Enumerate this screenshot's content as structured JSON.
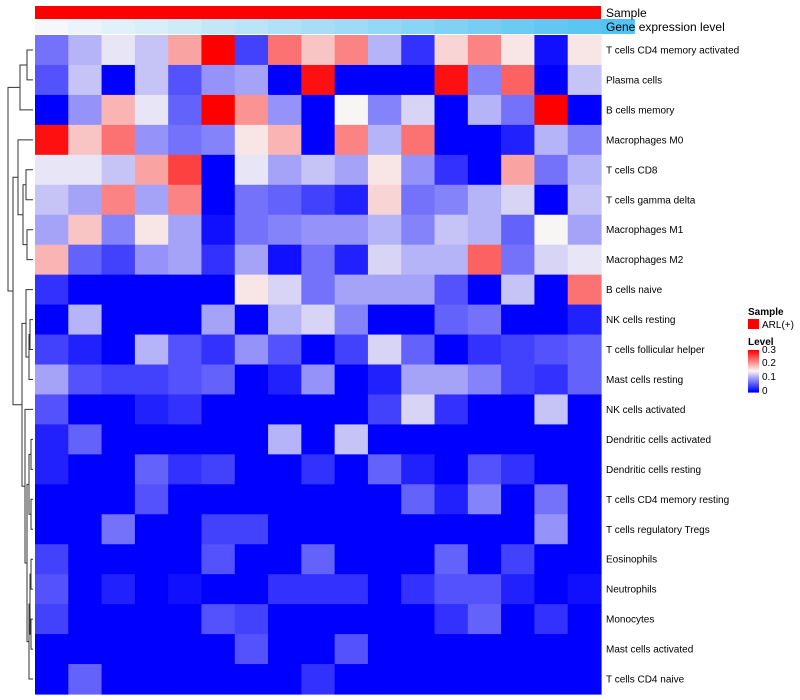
{
  "chart_data": {
    "type": "heatmap",
    "annotation_labels": [
      "Sample",
      "Gene expression level"
    ],
    "rows": [
      "T cells CD4 memory activated",
      "Plasma cells",
      "B cells memory",
      "Macrophages M0",
      "T cells CD8",
      "T cells gamma delta",
      "Macrophages M1",
      "Macrophages M2",
      "B cells naive",
      "NK cells resting",
      "T cells follicular helper",
      "Mast cells resting",
      "NK cells activated",
      "Dendritic cells activated",
      "Dendritic cells resting",
      "T cells CD4 memory resting",
      "T cells regulatory  Tregs",
      "Eosinophils",
      "Neutrophils",
      "Monocytes",
      "Mast cells activated",
      "T cells CD4 naive"
    ],
    "expression_level": [
      0.0,
      0.06,
      0.12,
      0.18,
      0.24,
      0.3,
      0.36,
      0.42,
      0.48,
      0.54,
      0.6,
      0.66,
      0.72,
      0.78,
      0.84,
      0.9,
      0.95,
      1.0
    ],
    "values": [
      [
        0.07,
        0.11,
        0.14,
        0.12,
        0.2,
        0.3,
        0.04,
        0.23,
        0.18,
        0.22,
        0.11,
        0.03,
        0.17,
        0.22,
        0.16,
        0.01,
        0.16
      ],
      [
        0.05,
        0.12,
        0.0,
        0.12,
        0.05,
        0.09,
        0.1,
        0.0,
        0.29,
        0.0,
        0.0,
        0.0,
        0.29,
        0.08,
        0.24,
        0.0,
        0.12
      ],
      [
        0.0,
        0.09,
        0.19,
        0.14,
        0.06,
        0.3,
        0.21,
        0.09,
        0.0,
        0.15,
        0.08,
        0.13,
        0.0,
        0.11,
        0.07,
        0.3,
        0.0
      ],
      [
        0.29,
        0.18,
        0.23,
        0.09,
        0.07,
        0.08,
        0.16,
        0.19,
        0.0,
        0.22,
        0.11,
        0.23,
        0.0,
        0.0,
        0.02,
        0.11,
        0.08
      ],
      [
        0.14,
        0.14,
        0.12,
        0.2,
        0.26,
        0.0,
        0.14,
        0.1,
        0.12,
        0.1,
        0.16,
        0.09,
        0.03,
        0.0,
        0.2,
        0.07,
        0.11
      ],
      [
        0.12,
        0.1,
        0.22,
        0.1,
        0.22,
        0.0,
        0.07,
        0.06,
        0.04,
        0.02,
        0.17,
        0.07,
        0.08,
        0.11,
        0.13,
        0.0,
        0.12
      ],
      [
        0.1,
        0.18,
        0.08,
        0.16,
        0.1,
        0.01,
        0.07,
        0.08,
        0.09,
        0.09,
        0.11,
        0.08,
        0.12,
        0.11,
        0.06,
        0.15,
        0.1
      ],
      [
        0.19,
        0.06,
        0.04,
        0.09,
        0.1,
        0.03,
        0.1,
        0.01,
        0.07,
        0.02,
        0.13,
        0.11,
        0.11,
        0.24,
        0.07,
        0.13,
        0.14
      ],
      [
        0.03,
        0.0,
        0.0,
        0.0,
        0.0,
        0.0,
        0.16,
        0.13,
        0.07,
        0.1,
        0.1,
        0.1,
        0.05,
        0.0,
        0.12,
        0.0,
        0.23
      ],
      [
        0.0,
        0.11,
        0.0,
        0.0,
        0.0,
        0.1,
        0.0,
        0.11,
        0.13,
        0.08,
        0.0,
        0.0,
        0.06,
        0.07,
        0.0,
        0.0,
        0.02
      ],
      [
        0.04,
        0.02,
        0.0,
        0.11,
        0.05,
        0.03,
        0.09,
        0.05,
        0.0,
        0.04,
        0.13,
        0.06,
        0.0,
        0.03,
        0.04,
        0.05,
        0.06
      ],
      [
        0.1,
        0.05,
        0.04,
        0.04,
        0.05,
        0.06,
        0.0,
        0.02,
        0.09,
        0.0,
        0.02,
        0.1,
        0.1,
        0.08,
        0.04,
        0.03,
        0.06
      ],
      [
        0.05,
        0.0,
        0.0,
        0.02,
        0.03,
        0.0,
        0.0,
        0.0,
        0.0,
        0.0,
        0.04,
        0.13,
        0.03,
        0.0,
        0.0,
        0.12,
        0.0
      ],
      [
        0.02,
        0.06,
        0.0,
        0.0,
        0.0,
        0.0,
        0.0,
        0.11,
        0.0,
        0.12,
        0.0,
        0.0,
        0.0,
        0.0,
        0.0,
        0.0,
        0.0
      ],
      [
        0.02,
        0.0,
        0.0,
        0.06,
        0.03,
        0.04,
        0.0,
        0.0,
        0.03,
        0.0,
        0.06,
        0.02,
        0.0,
        0.05,
        0.03,
        0.0,
        0.0
      ],
      [
        0.0,
        0.0,
        0.0,
        0.05,
        0.0,
        0.0,
        0.0,
        0.0,
        0.0,
        0.0,
        0.0,
        0.06,
        0.02,
        0.08,
        0.0,
        0.07,
        0.0
      ],
      [
        0.0,
        0.0,
        0.07,
        0.0,
        0.0,
        0.04,
        0.04,
        0.0,
        0.0,
        0.0,
        0.0,
        0.0,
        0.0,
        0.0,
        0.0,
        0.09,
        0.0
      ],
      [
        0.04,
        0.0,
        0.0,
        0.0,
        0.0,
        0.05,
        0.0,
        0.0,
        0.06,
        0.0,
        0.0,
        0.0,
        0.06,
        0.0,
        0.04,
        0.0,
        0.0
      ],
      [
        0.05,
        0.0,
        0.02,
        0.0,
        0.01,
        0.0,
        0.0,
        0.03,
        0.03,
        0.03,
        0.0,
        0.03,
        0.05,
        0.05,
        0.02,
        0.0,
        0.01
      ],
      [
        0.04,
        0.0,
        0.0,
        0.0,
        0.0,
        0.05,
        0.04,
        0.0,
        0.0,
        0.0,
        0.0,
        0.0,
        0.03,
        0.06,
        0.0,
        0.03,
        0.0
      ],
      [
        0.0,
        0.0,
        0.0,
        0.0,
        0.0,
        0.0,
        0.05,
        0.0,
        0.0,
        0.05,
        0.0,
        0.0,
        0.0,
        0.0,
        0.0,
        0.0,
        0.0
      ],
      [
        0.0,
        0.06,
        0.0,
        0.0,
        0.0,
        0.0,
        0.0,
        0.0,
        0.03,
        0.0,
        0.0,
        0.0,
        0.0,
        0.0,
        0.0,
        0.0,
        0.0
      ]
    ],
    "color_scale": {
      "min": 0,
      "max": 0.3,
      "low": "#0000ff",
      "mid": "#f8f5f5",
      "high": "#ff0000",
      "midpoint": 0.15
    },
    "legend": {
      "sample_title": "Sample",
      "sample_entry": "ARL(+)",
      "sample_color": "#ff0000",
      "level_title": "Level",
      "level_ticks": [
        0.3,
        0.2,
        0.1,
        0
      ],
      "expr_low_color": "#f5f7fa",
      "expr_high_color": "#52c3f2"
    },
    "dendrogram": "rows clustered (hierarchical)"
  }
}
